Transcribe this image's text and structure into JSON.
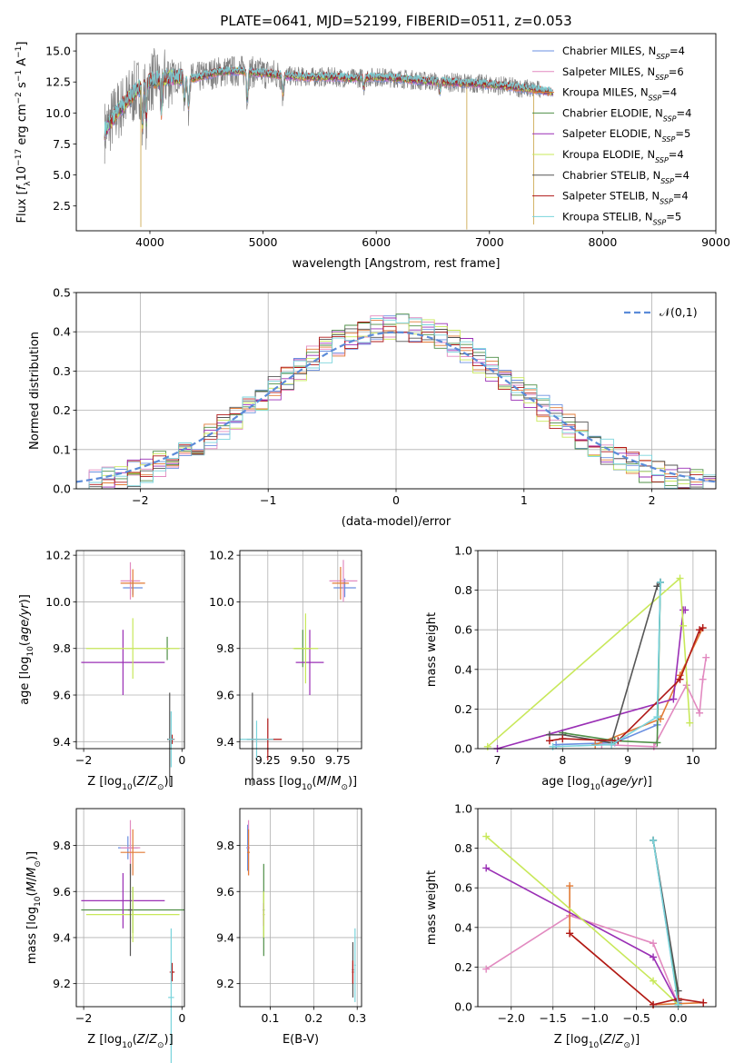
{
  "chart_data": [
    {
      "type": "line",
      "title": "PLATE=0641, MJD=52199, FIBERID=0511, z=0.053",
      "xlabel": "wavelength [Angstrom, rest frame]",
      "ylabel": "Flux [f_λ 10^-17 erg cm^-2 s^-1 A^-1]",
      "xlim": [
        3350,
        9000
      ],
      "ylim": [
        0.5,
        16.4
      ],
      "xticks": [
        4000,
        5000,
        6000,
        7000,
        8000,
        9000
      ],
      "yticks": [
        2.5,
        5.0,
        7.5,
        10.0,
        12.5,
        15.0
      ],
      "grid": false,
      "legend_position": "upper-right",
      "series": [
        {
          "name": "Chabrier MILES, N_SSP=4",
          "color": "#6a8fe0"
        },
        {
          "name": "Salpeter MILES, N_SSP=6",
          "color": "#e28ac0"
        },
        {
          "name": "Kroupa MILES, N_SSP=4",
          "color": "#e27a35"
        },
        {
          "name": "Chabrier ELODIE, N_SSP=4",
          "color": "#4f8f47"
        },
        {
          "name": "Salpeter ELODIE, N_SSP=5",
          "color": "#9a2fb5"
        },
        {
          "name": "Kroupa ELODIE, N_SSP=4",
          "color": "#c8e85a"
        },
        {
          "name": "Chabrier STELIB, N_SSP=4",
          "color": "#555555"
        },
        {
          "name": "Salpeter STELIB, N_SSP=4",
          "color": "#b01818"
        },
        {
          "name": "Kroupa STELIB, N_SSP=5",
          "color": "#7ad4dc"
        }
      ],
      "data_color": "#808080",
      "continuum": [
        [
          3600,
          8.5
        ],
        [
          3700,
          10.0
        ],
        [
          3800,
          11.0
        ],
        [
          3900,
          12.0
        ],
        [
          4000,
          12.6
        ],
        [
          4200,
          12.9
        ],
        [
          4400,
          12.8
        ],
        [
          4600,
          13.3
        ],
        [
          4800,
          13.4
        ],
        [
          5000,
          13.2
        ],
        [
          5200,
          13.0
        ],
        [
          5400,
          12.9
        ],
        [
          5600,
          12.9
        ],
        [
          5800,
          12.8
        ],
        [
          6000,
          12.9
        ],
        [
          6200,
          12.8
        ],
        [
          6400,
          12.6
        ],
        [
          6600,
          12.5
        ],
        [
          6800,
          12.4
        ],
        [
          7000,
          12.3
        ],
        [
          7200,
          12.1
        ],
        [
          7400,
          11.9
        ],
        [
          7600,
          11.6
        ]
      ],
      "model_wavelength_range": [
        3600,
        7560
      ],
      "data_wavelength_range": [
        3600,
        7450
      ]
    },
    {
      "type": "bar",
      "xlabel": "(data-model)/error",
      "ylabel": "Normed distribution",
      "xlim": [
        -2.5,
        2.5
      ],
      "ylim": [
        0,
        0.5
      ],
      "xticks": [
        -2,
        -1,
        0,
        1,
        2
      ],
      "yticks": [
        0.0,
        0.1,
        0.2,
        0.3,
        0.4,
        0.5
      ],
      "grid": true,
      "legend_position": "upper-right",
      "reference_curve": {
        "name": "𝒩(0,1)",
        "color": "#5b8bd8"
      },
      "bin_width": 0.1,
      "histogram_series_count": 9
    },
    {
      "type": "scatter",
      "xlabel": "Z [log10(Z/Z⊙)]",
      "ylabel": "age  [log10(age/yr)]",
      "xlim": [
        -2.15,
        0.05
      ],
      "ylim": [
        9.37,
        10.22
      ],
      "xticks": [
        -2,
        0
      ],
      "yticks": [
        9.4,
        9.6,
        9.8,
        10.0,
        10.2
      ],
      "grid": true,
      "points": [
        {
          "x": -1.0,
          "y": 10.06,
          "xerr": 0.2,
          "yerr": 0.03,
          "color": "#6a8fe0"
        },
        {
          "x": -1.05,
          "y": 10.09,
          "xerr": 0.2,
          "yerr": 0.08,
          "color": "#e28ac0"
        },
        {
          "x": -1.0,
          "y": 10.08,
          "xerr": 0.25,
          "yerr": 0.06,
          "color": "#e27a35"
        },
        {
          "x": -0.3,
          "y": 9.8,
          "xerr": 0.05,
          "yerr": 0.05,
          "color": "#4f8f47"
        },
        {
          "x": -1.2,
          "y": 9.74,
          "xerr": 0.85,
          "yerr": 0.14,
          "color": "#9a2fb5"
        },
        {
          "x": -1.0,
          "y": 9.8,
          "xerr": 0.95,
          "yerr": 0.13,
          "color": "#c8e85a"
        },
        {
          "x": -0.25,
          "y": 9.41,
          "xerr": 0.05,
          "yerr": 0.2,
          "color": "#555555"
        },
        {
          "x": -0.2,
          "y": 9.41,
          "xerr": 0.05,
          "yerr": 0.02,
          "color": "#b01818"
        },
        {
          "x": -0.22,
          "y": 9.41,
          "xerr": 0.06,
          "yerr": 0.12,
          "color": "#7ad4dc"
        }
      ]
    },
    {
      "type": "scatter",
      "xlabel": "mass [log10(M/M⊙)]",
      "ylabel": "",
      "xlim": [
        9.05,
        9.92
      ],
      "ylim": [
        9.37,
        10.22
      ],
      "xticks": [
        9.25,
        9.5,
        9.75
      ],
      "yticks": [
        9.4,
        9.6,
        9.8,
        10.0,
        10.2
      ],
      "grid": true,
      "points": [
        {
          "x": 9.8,
          "y": 10.06,
          "xerr": 0.08,
          "yerr": 0.04,
          "color": "#6a8fe0"
        },
        {
          "x": 9.79,
          "y": 10.09,
          "xerr": 0.1,
          "yerr": 0.09,
          "color": "#e28ac0"
        },
        {
          "x": 9.77,
          "y": 10.08,
          "xerr": 0.06,
          "yerr": 0.07,
          "color": "#e27a35"
        },
        {
          "x": 9.5,
          "y": 9.8,
          "xerr": 0.06,
          "yerr": 0.08,
          "color": "#4f8f47"
        },
        {
          "x": 9.55,
          "y": 9.74,
          "xerr": 0.1,
          "yerr": 0.14,
          "color": "#9a2fb5"
        },
        {
          "x": 9.52,
          "y": 9.8,
          "xerr": 0.09,
          "yerr": 0.15,
          "color": "#c8e85a"
        },
        {
          "x": 9.14,
          "y": 9.41,
          "xerr": 0.04,
          "yerr": 0.2,
          "color": "#555555"
        },
        {
          "x": 9.25,
          "y": 9.41,
          "xerr": 0.1,
          "yerr": 0.09,
          "color": "#b01818"
        },
        {
          "x": 9.17,
          "y": 9.41,
          "xerr": 0.12,
          "yerr": 0.08,
          "color": "#7ad4dc"
        }
      ]
    },
    {
      "type": "line",
      "xlabel": "age  [log10(age/yr)]",
      "ylabel": "mass weight",
      "xlim": [
        6.7,
        10.35
      ],
      "ylim": [
        0,
        1
      ],
      "xticks": [
        7,
        8,
        9,
        10
      ],
      "yticks": [
        0.0,
        0.2,
        0.4,
        0.6,
        0.8,
        1.0
      ],
      "grid": true,
      "series": [
        {
          "color": "#6a8fe0",
          "x": [
            7.9,
            8.8,
            9.45,
            9.5
          ],
          "y": [
            0.02,
            0.03,
            0.12,
            0.84
          ]
        },
        {
          "color": "#e28ac0",
          "x": [
            8.6,
            9.4,
            9.9,
            10.1,
            10.15,
            10.2
          ],
          "y": [
            0.02,
            0.01,
            0.32,
            0.18,
            0.35,
            0.46
          ]
        },
        {
          "color": "#e27a35",
          "x": [
            8.5,
            9.5,
            9.8,
            10.15
          ],
          "y": [
            0.02,
            0.15,
            0.37,
            0.61
          ]
        },
        {
          "color": "#4f8f47",
          "x": [
            8.0,
            8.8,
            9.45,
            9.5
          ],
          "y": [
            0.08,
            0.04,
            0.03,
            0.84
          ]
        },
        {
          "color": "#9a2fb5",
          "x": [
            7.0,
            9.7,
            9.85,
            9.88
          ],
          "y": [
            0.0,
            0.25,
            0.7,
            0.7
          ]
        },
        {
          "color": "#c8e85a",
          "x": [
            6.85,
            9.8,
            9.85,
            9.95
          ],
          "y": [
            0.01,
            0.86,
            0.62,
            0.13
          ]
        },
        {
          "color": "#555555",
          "x": [
            7.8,
            8.0,
            8.75,
            9.45,
            9.5
          ],
          "y": [
            0.07,
            0.07,
            0.03,
            0.82,
            0.84
          ]
        },
        {
          "color": "#b01818",
          "x": [
            7.8,
            8.0,
            8.85,
            9.8,
            10.1,
            10.15
          ],
          "y": [
            0.04,
            0.05,
            0.04,
            0.35,
            0.6,
            0.61
          ]
        },
        {
          "color": "#7ad4dc",
          "x": [
            7.85,
            8.75,
            9.45,
            9.5
          ],
          "y": [
            0.01,
            0.02,
            0.16,
            0.84
          ]
        }
      ]
    },
    {
      "type": "scatter",
      "xlabel": "Z [log10(Z/Z⊙)]",
      "ylabel": "mass [log10(M/M⊙)]",
      "xlim": [
        -2.15,
        0.05
      ],
      "ylim": [
        9.1,
        9.96
      ],
      "xticks": [
        -2,
        0
      ],
      "yticks": [
        9.2,
        9.4,
        9.6,
        9.8
      ],
      "grid": true,
      "points": [
        {
          "x": -1.1,
          "y": 9.79,
          "xerr": 0.2,
          "yerr": 0.05,
          "color": "#6a8fe0"
        },
        {
          "x": -1.05,
          "y": 9.79,
          "xerr": 0.2,
          "yerr": 0.12,
          "color": "#e28ac0"
        },
        {
          "x": -1.0,
          "y": 9.77,
          "xerr": 0.25,
          "yerr": 0.1,
          "color": "#e27a35"
        },
        {
          "x": -1.0,
          "y": 9.52,
          "xerr": 1.05,
          "yerr": 0.1,
          "color": "#4f8f47"
        },
        {
          "x": -1.2,
          "y": 9.56,
          "xerr": 0.85,
          "yerr": 0.12,
          "color": "#9a2fb5"
        },
        {
          "x": -1.0,
          "y": 9.5,
          "xerr": 0.95,
          "yerr": 0.12,
          "color": "#c8e85a"
        },
        {
          "x": -1.05,
          "y": 9.52,
          "xerr": 0.05,
          "yerr": 0.2,
          "color": "#555555"
        },
        {
          "x": -0.2,
          "y": 9.25,
          "xerr": 0.05,
          "yerr": 0.04,
          "color": "#b01818"
        },
        {
          "x": -0.22,
          "y": 9.14,
          "xerr": 0.06,
          "yerr": 0.3,
          "color": "#7ad4dc"
        }
      ]
    },
    {
      "type": "scatter",
      "xlabel": "E(B-V)",
      "ylabel": "",
      "xlim": [
        0.03,
        0.31
      ],
      "ylim": [
        9.1,
        9.96
      ],
      "xticks": [
        0.1,
        0.2,
        0.3
      ],
      "yticks": [
        9.2,
        9.4,
        9.6,
        9.8
      ],
      "grid": true,
      "points": [
        {
          "x": 0.048,
          "y": 9.79,
          "xerr": 0.003,
          "yerr": 0.1,
          "color": "#6a8fe0"
        },
        {
          "x": 0.05,
          "y": 9.79,
          "xerr": 0.003,
          "yerr": 0.12,
          "color": "#e28ac0"
        },
        {
          "x": 0.05,
          "y": 9.77,
          "xerr": 0.003,
          "yerr": 0.1,
          "color": "#e27a35"
        },
        {
          "x": 0.085,
          "y": 9.52,
          "xerr": 0.002,
          "yerr": 0.2,
          "color": "#4f8f47"
        },
        {
          "x": 0.085,
          "y": 9.5,
          "xerr": 0.002,
          "yerr": 0.05,
          "color": "#9a2fb5"
        },
        {
          "x": 0.085,
          "y": 9.5,
          "xerr": 0.002,
          "yerr": 0.1,
          "color": "#c8e85a"
        },
        {
          "x": 0.29,
          "y": 9.26,
          "xerr": 0.002,
          "yerr": 0.12,
          "color": "#555555"
        },
        {
          "x": 0.29,
          "y": 9.25,
          "xerr": 0.002,
          "yerr": 0.05,
          "color": "#b01818"
        },
        {
          "x": 0.295,
          "y": 9.28,
          "xerr": 0.002,
          "yerr": 0.16,
          "color": "#7ad4dc"
        }
      ]
    },
    {
      "type": "line",
      "xlabel": "Z [log10(Z/Z⊙)]",
      "ylabel": "mass weight",
      "xlim": [
        -2.4,
        0.45
      ],
      "ylim": [
        0,
        1
      ],
      "xticks": [
        -2.0,
        -1.5,
        -1.0,
        -0.5,
        0.0
      ],
      "yticks": [
        0.0,
        0.2,
        0.4,
        0.6,
        0.8,
        1.0
      ],
      "grid": true,
      "series": [
        {
          "color": "#6a8fe0",
          "x": [
            -0.3,
            0.0
          ],
          "y": [
            0.84,
            0.02
          ]
        },
        {
          "color": "#e28ac0",
          "x": [
            -2.3,
            -1.3,
            -0.3,
            0.0
          ],
          "y": [
            0.19,
            0.46,
            0.32,
            0.01
          ]
        },
        {
          "color": "#e27a35",
          "x": [
            -1.3,
            -1.3,
            -0.3,
            0.3
          ],
          "y": [
            0.61,
            0.37,
            0.01,
            0.02
          ]
        },
        {
          "color": "#4f8f47",
          "x": [
            -0.3,
            0.0
          ],
          "y": [
            0.84,
            0.04
          ]
        },
        {
          "color": "#9a2fb5",
          "x": [
            -2.3,
            -0.3,
            0.0
          ],
          "y": [
            0.7,
            0.25,
            0.01
          ]
        },
        {
          "color": "#c8e85a",
          "x": [
            -2.3,
            -0.3,
            0.0
          ],
          "y": [
            0.86,
            0.13,
            0.01
          ]
        },
        {
          "color": "#555555",
          "x": [
            -0.3,
            0.0,
            0.0
          ],
          "y": [
            0.84,
            0.08,
            0.03
          ]
        },
        {
          "color": "#b01818",
          "x": [
            -1.3,
            -0.3,
            0.0,
            0.3
          ],
          "y": [
            0.37,
            0.01,
            0.04,
            0.02
          ]
        },
        {
          "color": "#7ad4dc",
          "x": [
            -0.3,
            0.0
          ],
          "y": [
            0.84,
            0.01
          ]
        }
      ]
    }
  ]
}
